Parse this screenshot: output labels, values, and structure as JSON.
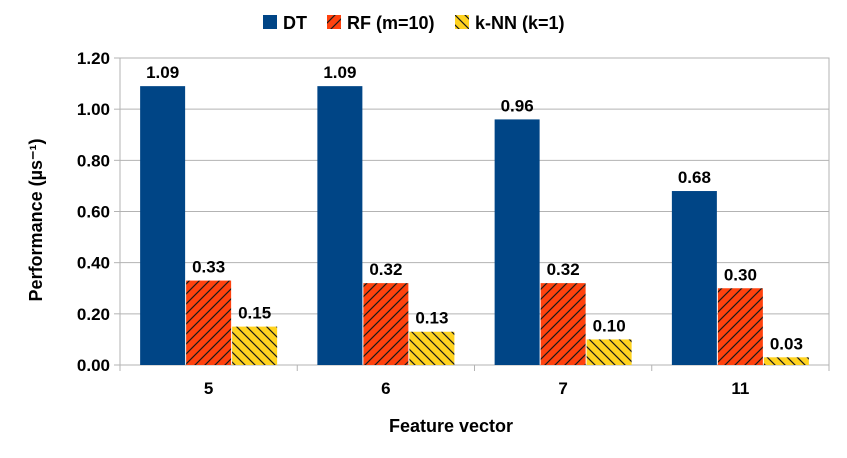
{
  "chart_data": {
    "type": "bar",
    "title": "",
    "xlabel": "Feature vector",
    "ylabel": "Performance (µs⁻¹)",
    "categories": [
      "5",
      "6",
      "7",
      "11"
    ],
    "ylim": [
      0,
      1.2
    ],
    "yticks": [
      0,
      0.2,
      0.4,
      0.6,
      0.8,
      1.0,
      1.2
    ],
    "ytick_labels": [
      "0.00",
      "0.20",
      "0.40",
      "0.60",
      "0.80",
      "1.00",
      "1.20"
    ],
    "grid": true,
    "legend_position": "top-center",
    "series": [
      {
        "name": "DT",
        "color": "#004586",
        "pattern": "solid",
        "values": [
          1.09,
          1.09,
          0.96,
          0.68
        ],
        "labels": [
          "1.09",
          "1.09",
          "0.96",
          "0.68"
        ]
      },
      {
        "name": "RF (m=10)",
        "color": "#ff420e",
        "pattern": "hatch-forward",
        "values": [
          0.33,
          0.32,
          0.32,
          0.3
        ],
        "labels": [
          "0.33",
          "0.32",
          "0.32",
          "0.30"
        ]
      },
      {
        "name": "k-NN (k=1)",
        "color": "#ffd320",
        "pattern": "hatch-back",
        "values": [
          0.15,
          0.13,
          0.1,
          0.03
        ],
        "labels": [
          "0.15",
          "0.13",
          "0.10",
          "0.03"
        ]
      }
    ]
  }
}
